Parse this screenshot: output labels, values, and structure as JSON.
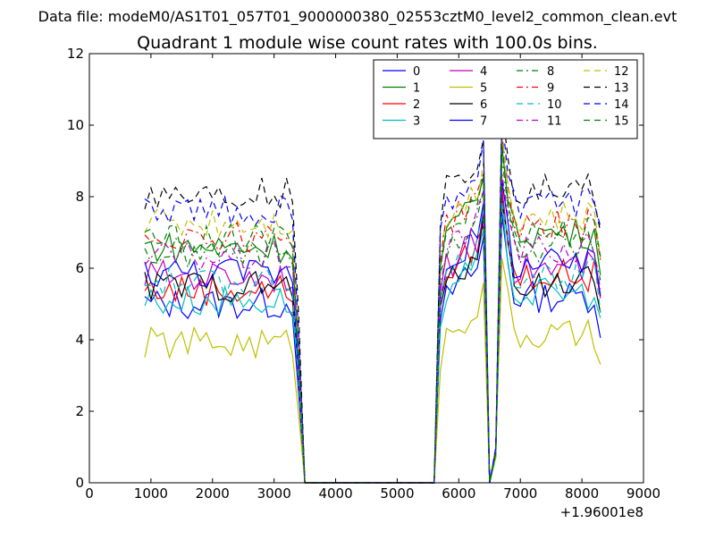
{
  "figure": {
    "suptitle": "Data file: modeM0/AS1T01_057T01_9000000380_02553cztM0_level2_common_clean.evt",
    "title": "Quadrant 1 module wise count rates with 100.0s bins.",
    "offset_label": "+1.96001e8"
  },
  "chart_data": {
    "type": "line",
    "xlim": [
      0,
      9000
    ],
    "ylim": [
      0,
      12
    ],
    "xticks": [
      0,
      1000,
      2000,
      3000,
      4000,
      5000,
      6000,
      7000,
      8000,
      9000
    ],
    "yticks": [
      0,
      2,
      4,
      6,
      8,
      10,
      12
    ],
    "xlabel": "",
    "ylabel": "",
    "grid": false,
    "legend_position": "top-right",
    "legend_columns": 4,
    "x_segments": [
      [
        900,
        3500
      ],
      [
        5600,
        8300
      ]
    ],
    "gap_level": 0,
    "series": [
      {
        "name": "0",
        "color": "#0000ff",
        "dash": "solid",
        "level_a": 5.0,
        "level_b": 5.2
      },
      {
        "name": "1",
        "color": "#008000",
        "dash": "solid",
        "level_a": 6.6,
        "level_b": 7.0
      },
      {
        "name": "2",
        "color": "#ff0000",
        "dash": "solid",
        "level_a": 5.4,
        "level_b": 5.8
      },
      {
        "name": "3",
        "color": "#00bfbf",
        "dash": "solid",
        "level_a": 5.1,
        "level_b": 5.3
      },
      {
        "name": "4",
        "color": "#bf00bf",
        "dash": "solid",
        "level_a": 5.8,
        "level_b": 6.0
      },
      {
        "name": "5",
        "color": "#bfbf00",
        "dash": "solid",
        "level_a": 3.9,
        "level_b": 4.1
      },
      {
        "name": "6",
        "color": "#000000",
        "dash": "solid",
        "level_a": 5.5,
        "level_b": 5.6
      },
      {
        "name": "7",
        "color": "#0000ff",
        "dash": "solid",
        "level_a": 5.9,
        "level_b": 6.1
      },
      {
        "name": "8",
        "color": "#008000",
        "dash": "dashdot",
        "level_a": 6.4,
        "level_b": 6.6
      },
      {
        "name": "9",
        "color": "#ff0000",
        "dash": "dashdot",
        "level_a": 6.9,
        "level_b": 7.2
      },
      {
        "name": "10",
        "color": "#00bfbf",
        "dash": "dashed",
        "level_a": 5.6,
        "level_b": 5.8
      },
      {
        "name": "11",
        "color": "#bf00bf",
        "dash": "dashdot",
        "level_a": 6.3,
        "level_b": 6.5
      },
      {
        "name": "12",
        "color": "#bfbf00",
        "dash": "dashed",
        "level_a": 7.3,
        "level_b": 7.4
      },
      {
        "name": "13",
        "color": "#000000",
        "dash": "dashed",
        "level_a": 8.1,
        "level_b": 8.2
      },
      {
        "name": "14",
        "color": "#0000ff",
        "dash": "dashed",
        "level_a": 7.6,
        "level_b": 7.8
      },
      {
        "name": "15",
        "color": "#008000",
        "dash": "dashed",
        "level_a": 6.8,
        "level_b": 7.0
      }
    ]
  }
}
